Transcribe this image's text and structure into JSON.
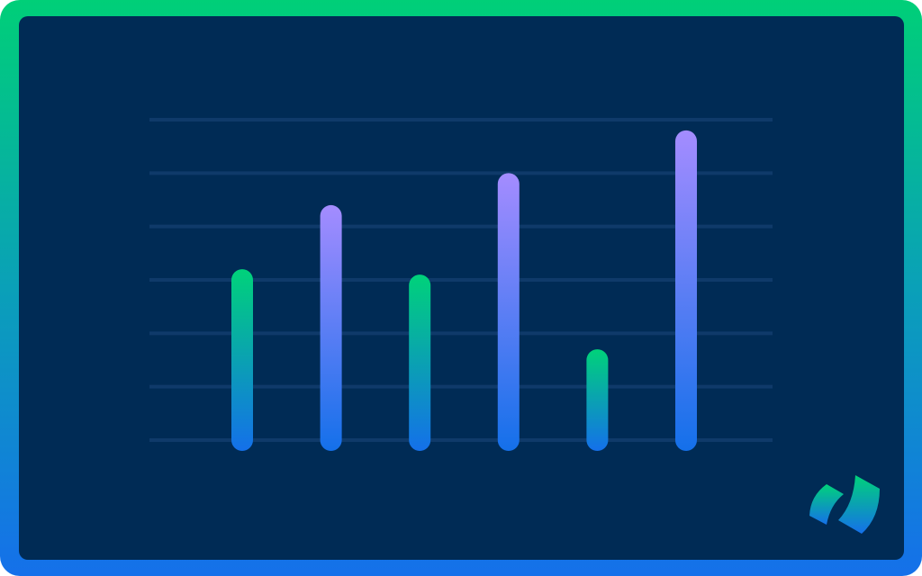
{
  "chart_data": {
    "type": "bar",
    "values": [
      3.2,
      4.4,
      3.1,
      5.0,
      1.7,
      5.8
    ],
    "colors": [
      "#00d27a",
      "#a48cff",
      "#00d27a",
      "#a48cff",
      "#00d27a",
      "#a48cff"
    ],
    "gradient_end": "#1470ea",
    "ylim": [
      0,
      6
    ],
    "yticks": [
      0,
      1,
      2,
      3,
      4,
      5,
      6
    ],
    "grid": true,
    "grid_color": "#0f3a6a"
  }
}
